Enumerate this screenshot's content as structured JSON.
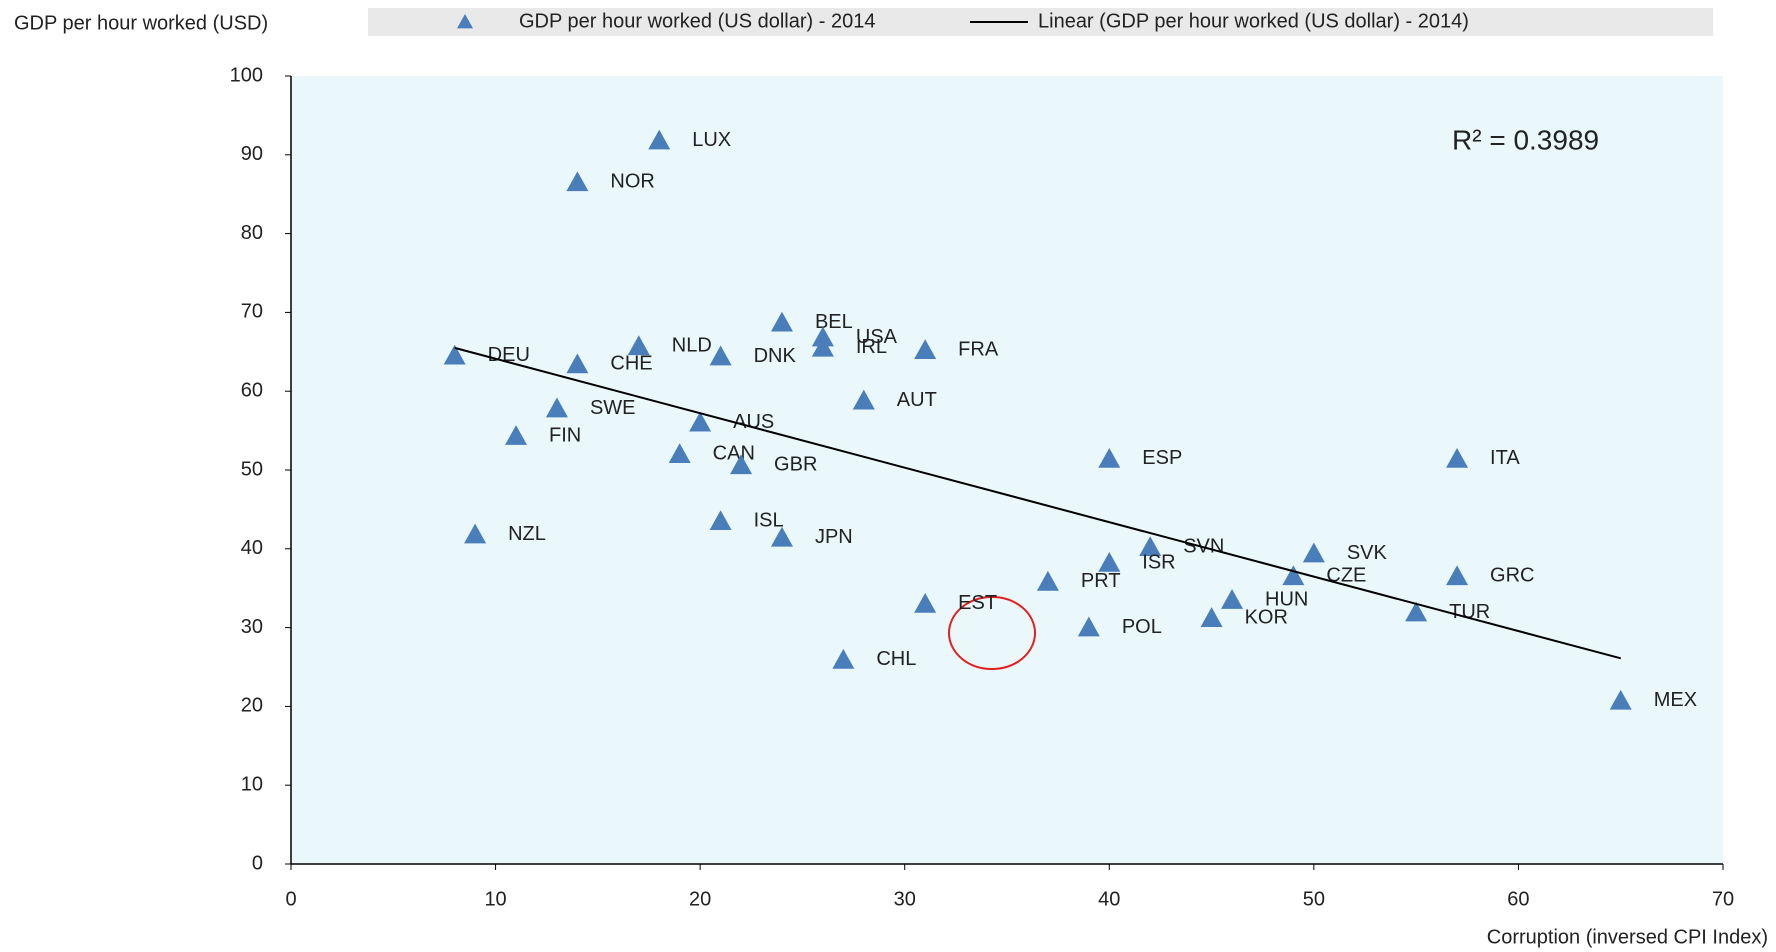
{
  "chart_data": {
    "type": "scatter",
    "y_label": "GDP per hour worked (USD)",
    "x_label": "Corruption (inversed CPI Index)",
    "annotation": "R² = 0.3989",
    "series": [
      {
        "name": "GDP per hour worked (US dollar) - 2014",
        "color": "#4a7ebb",
        "labels": [
          "LUX",
          "NOR",
          "BEL",
          "USA",
          "IRL",
          "FRA",
          "NLD",
          "DNK",
          "DEU",
          "CHE",
          "AUT",
          "SWE",
          "AUS",
          "FIN",
          "CAN",
          "GBR",
          "ESP",
          "ITA",
          "ISL",
          "NZL",
          "JPN",
          "SVN",
          "SVK",
          "ISR",
          "CZE",
          "GRC",
          "PRT",
          "HUN",
          "EST",
          "TUR",
          "KOR",
          "POL",
          "CHL",
          "MEX"
        ],
        "x": [
          18,
          14,
          24,
          26,
          26,
          31,
          17,
          21,
          8,
          14,
          28,
          13,
          20,
          11,
          19,
          22,
          40,
          57,
          21,
          9,
          24,
          42,
          50,
          40,
          49,
          57,
          37,
          46,
          31,
          55,
          45,
          39,
          27,
          65
        ],
        "values": [
          91.8,
          86.5,
          68.7,
          66.8,
          65.5,
          65.2,
          65.7,
          64.4,
          64.5,
          63.4,
          58.8,
          57.8,
          56.0,
          54.3,
          52.0,
          50.6,
          51.4,
          51.4,
          43.5,
          41.8,
          41.4,
          40.2,
          39.4,
          38.2,
          36.5,
          36.5,
          35.8,
          33.5,
          33.0,
          31.9,
          31.2,
          30.0,
          25.9,
          20.7
        ]
      },
      {
        "name": "Linear (GDP per hour worked (US dollar) - 2014)",
        "color": "#000000",
        "x": [
          8,
          65
        ],
        "values": [
          65.5,
          26.1
        ]
      }
    ],
    "xlim": [
      0,
      70
    ],
    "xticks": [
      0,
      10,
      20,
      30,
      40,
      50,
      60,
      70
    ],
    "ylim": [
      0,
      100
    ],
    "yticks": [
      0,
      10,
      20,
      30,
      40,
      50,
      60,
      70,
      80,
      90,
      100
    ]
  }
}
